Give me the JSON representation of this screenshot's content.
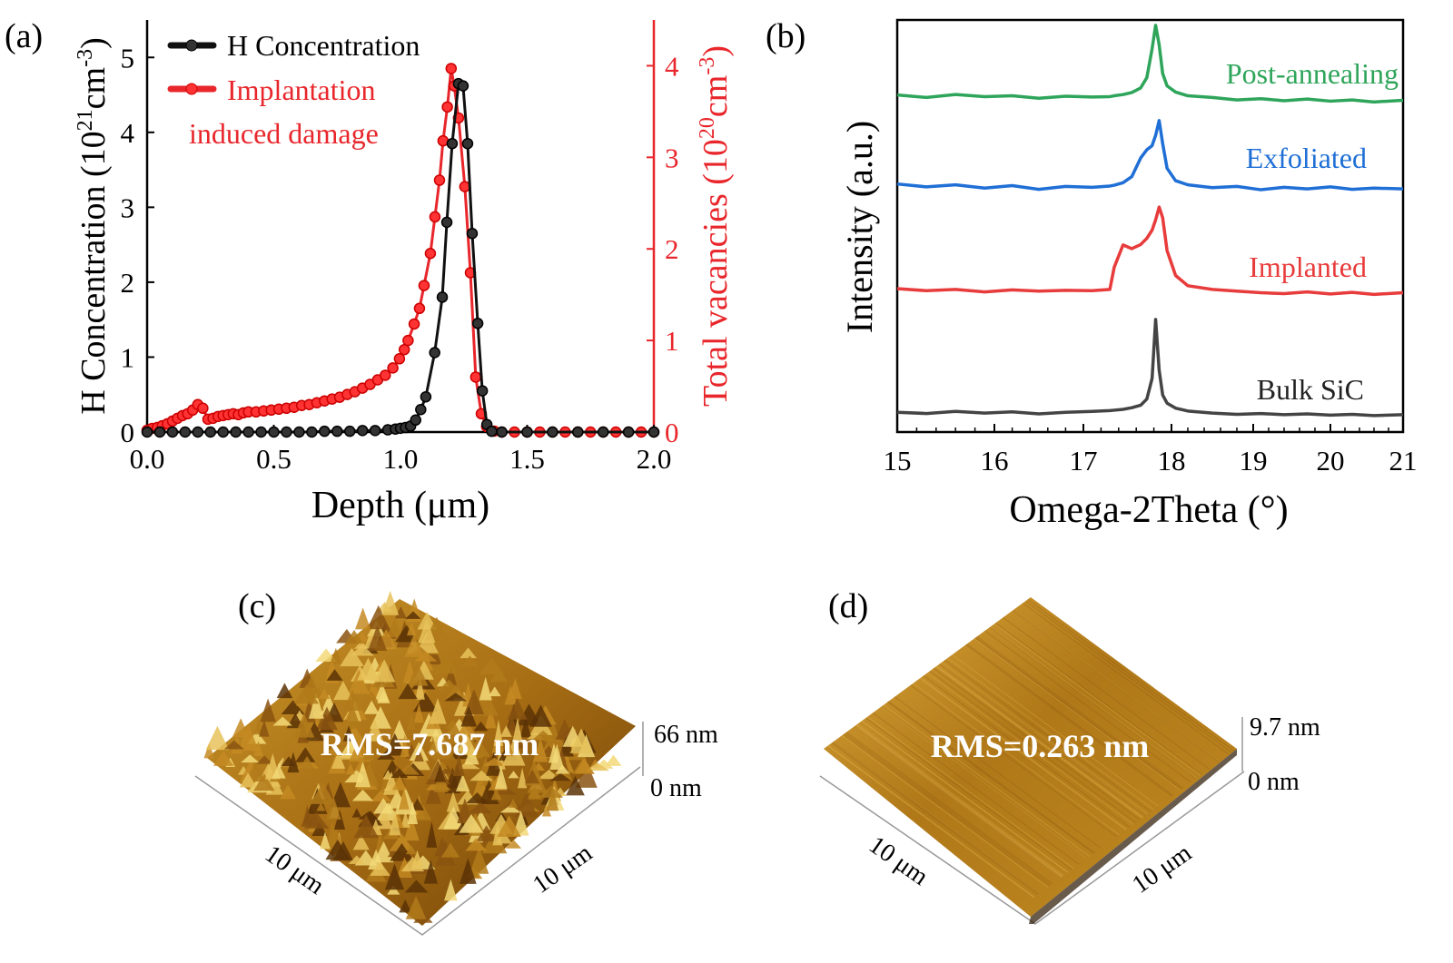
{
  "panel_labels": {
    "a": "(a)",
    "b": "(b)",
    "c": "(c)",
    "d": "(d)"
  },
  "colors": {
    "h": "#111111",
    "damage": "#e8262b",
    "post": "#2ea55a",
    "exf": "#1f6fd6",
    "imp": "#e83b3b",
    "bulk": "#444444"
  },
  "chart_data": [
    {
      "type": "line",
      "panel": "a",
      "xlabel": "Depth (μm)",
      "ylabel": {
        "main": "H Concentration (10",
        "sup1": "21",
        "mid": "cm",
        "sup2": "-3",
        "end": ")"
      },
      "y2label": {
        "main": "Total vacancies (10",
        "sup1": "20",
        "mid": "cm",
        "sup2": "-3",
        "end": ")"
      },
      "xlim": [
        0,
        2.0
      ],
      "ylim": [
        0,
        5.5
      ],
      "y2lim": [
        0,
        4.5
      ],
      "xticks": [
        "0.0",
        "0.5",
        "1.0",
        "1.5",
        "2.0"
      ],
      "yticks": [
        "0",
        "1",
        "2",
        "3",
        "4",
        "5"
      ],
      "y2ticks": [
        "0",
        "1",
        "2",
        "3",
        "4"
      ],
      "legend": {
        "position": "top-left",
        "h_label": "H Concentration",
        "damage_label_1": "Implantation",
        "damage_label_2": "induced damage"
      },
      "series": [
        {
          "name": "H Concentration",
          "axis": "left",
          "marker": "circle",
          "points": [
            [
              0,
              0
            ],
            [
              0.05,
              0
            ],
            [
              0.1,
              0
            ],
            [
              0.15,
              0
            ],
            [
              0.2,
              0
            ],
            [
              0.25,
              0
            ],
            [
              0.3,
              0
            ],
            [
              0.35,
              0
            ],
            [
              0.4,
              0
            ],
            [
              0.45,
              0
            ],
            [
              0.5,
              0
            ],
            [
              0.55,
              0
            ],
            [
              0.6,
              0
            ],
            [
              0.65,
              0
            ],
            [
              0.7,
              0.01
            ],
            [
              0.75,
              0.01
            ],
            [
              0.8,
              0.01
            ],
            [
              0.85,
              0.02
            ],
            [
              0.9,
              0.02
            ],
            [
              0.95,
              0.03
            ],
            [
              0.98,
              0.04
            ],
            [
              1.0,
              0.05
            ],
            [
              1.02,
              0.06
            ],
            [
              1.04,
              0.08
            ],
            [
              1.06,
              0.16
            ],
            [
              1.08,
              0.3
            ],
            [
              1.1,
              0.47
            ],
            [
              1.135,
              1.06
            ],
            [
              1.165,
              1.8
            ],
            [
              1.183,
              2.8
            ],
            [
              1.204,
              3.85
            ],
            [
              1.229,
              4.65
            ],
            [
              1.247,
              4.62
            ],
            [
              1.265,
              3.85
            ],
            [
              1.283,
              2.65
            ],
            [
              1.305,
              1.45
            ],
            [
              1.323,
              0.55
            ],
            [
              1.341,
              0.1
            ],
            [
              1.36,
              0.01
            ],
            [
              1.4,
              0
            ],
            [
              1.5,
              0
            ],
            [
              1.6,
              0
            ],
            [
              1.7,
              0
            ],
            [
              1.8,
              0
            ],
            [
              1.9,
              0
            ],
            [
              2.0,
              0
            ]
          ]
        },
        {
          "name": "Implantation induced damage",
          "axis": "right",
          "marker": "circle",
          "points": [
            [
              0,
              0.02
            ],
            [
              0.02,
              0.04
            ],
            [
              0.04,
              0.05
            ],
            [
              0.06,
              0.07
            ],
            [
              0.08,
              0.09
            ],
            [
              0.1,
              0.12
            ],
            [
              0.12,
              0.15
            ],
            [
              0.14,
              0.18
            ],
            [
              0.16,
              0.2
            ],
            [
              0.18,
              0.24
            ],
            [
              0.2,
              0.3
            ],
            [
              0.22,
              0.26
            ],
            [
              0.24,
              0.14
            ],
            [
              0.26,
              0.15
            ],
            [
              0.28,
              0.17
            ],
            [
              0.3,
              0.18
            ],
            [
              0.32,
              0.19
            ],
            [
              0.34,
              0.2
            ],
            [
              0.36,
              0.19
            ],
            [
              0.38,
              0.21
            ],
            [
              0.4,
              0.22
            ],
            [
              0.43,
              0.22
            ],
            [
              0.46,
              0.23
            ],
            [
              0.49,
              0.24
            ],
            [
              0.52,
              0.25
            ],
            [
              0.55,
              0.26
            ],
            [
              0.58,
              0.27
            ],
            [
              0.61,
              0.29
            ],
            [
              0.64,
              0.3
            ],
            [
              0.67,
              0.32
            ],
            [
              0.7,
              0.34
            ],
            [
              0.73,
              0.36
            ],
            [
              0.76,
              0.38
            ],
            [
              0.79,
              0.41
            ],
            [
              0.82,
              0.44
            ],
            [
              0.85,
              0.48
            ],
            [
              0.88,
              0.52
            ],
            [
              0.91,
              0.57
            ],
            [
              0.94,
              0.62
            ],
            [
              0.97,
              0.7
            ],
            [
              0.996,
              0.8
            ],
            [
              1.015,
              0.9
            ],
            [
              1.03,
              1.0
            ],
            [
              1.054,
              1.18
            ],
            [
              1.075,
              1.35
            ],
            [
              1.093,
              1.6
            ],
            [
              1.118,
              1.95
            ],
            [
              1.136,
              2.35
            ],
            [
              1.154,
              2.75
            ],
            [
              1.168,
              3.18
            ],
            [
              1.185,
              3.55
            ],
            [
              1.2,
              3.97
            ],
            [
              1.212,
              3.78
            ],
            [
              1.229,
              3.43
            ],
            [
              1.254,
              2.68
            ],
            [
              1.276,
              1.74
            ],
            [
              1.297,
              0.6
            ],
            [
              1.319,
              0.2
            ],
            [
              1.34,
              0.06
            ],
            [
              1.37,
              0.01
            ],
            [
              1.4,
              0
            ],
            [
              1.45,
              0
            ],
            [
              1.5,
              0
            ],
            [
              1.55,
              0
            ],
            [
              1.6,
              0
            ],
            [
              1.65,
              0
            ],
            [
              1.7,
              0
            ],
            [
              1.75,
              0
            ],
            [
              1.8,
              0
            ],
            [
              1.85,
              0
            ],
            [
              1.9,
              0
            ],
            [
              1.95,
              0
            ],
            [
              2.0,
              0
            ]
          ]
        }
      ]
    },
    {
      "type": "line",
      "panel": "b",
      "xlabel": "Omega-2Theta (°)",
      "ylabel": "Intensity (a.u.)",
      "xlim": [
        15,
        21
      ],
      "xticks": [
        "15",
        "16",
        "17",
        "18",
        "19",
        "20",
        "21"
      ],
      "y_units": "a.u. (stacked, no tick labels)",
      "x": [
        15,
        15.3,
        15.6,
        15.9,
        16.2,
        16.5,
        16.8,
        17.1,
        17.3,
        17.35,
        17.45,
        17.55,
        17.65,
        17.72,
        17.78,
        17.82,
        17.86,
        17.9,
        17.95,
        18.05,
        18.2,
        18.5,
        18.8,
        19.1,
        19.4,
        19.7,
        20,
        20.3,
        20.6,
        21
      ],
      "series": [
        {
          "name": "Post-annealing",
          "color_key": "post",
          "values": [
            81.8,
            81.2,
            81.9,
            81.4,
            81.6,
            81.0,
            81.5,
            81.3,
            81.4,
            81.6,
            81.9,
            82.4,
            83.5,
            86,
            93,
            98.7,
            94,
            87,
            84,
            82.5,
            81.6,
            81.2,
            80.6,
            80.9,
            80.4,
            80.8,
            80.3,
            80.6,
            80.1,
            80.5
          ]
        },
        {
          "name": "Exfoliated",
          "color_key": "exf",
          "values": [
            60.2,
            59.5,
            60.0,
            59.2,
            59.8,
            58.9,
            59.6,
            59.4,
            59.7,
            59.9,
            60.5,
            62,
            66.5,
            68.5,
            69.5,
            72,
            75.6,
            70,
            64,
            61,
            60,
            59.3,
            59.6,
            58.8,
            59.4,
            59.0,
            59.5,
            58.9,
            59.2,
            59.0
          ]
        },
        {
          "name": "Implanted",
          "color_key": "imp",
          "values": [
            34.8,
            34.3,
            34.6,
            34.0,
            34.5,
            34.2,
            34.4,
            34.3,
            34.6,
            40,
            45.4,
            44.5,
            45.5,
            47,
            49,
            51.5,
            54.6,
            52,
            44,
            38,
            35.5,
            34.6,
            34.2,
            33.8,
            33.6,
            34.0,
            33.5,
            33.9,
            33.4,
            33.8
          ]
        },
        {
          "name": "Bulk SiC",
          "color_key": "bulk",
          "values": [
            4.8,
            4.5,
            5.0,
            4.6,
            4.9,
            4.4,
            4.8,
            5.0,
            5.2,
            5.3,
            5.5,
            5.9,
            6.5,
            8,
            13,
            27.3,
            15,
            9,
            7,
            5.8,
            5.1,
            4.6,
            4.3,
            4.5,
            4.2,
            4.4,
            4.1,
            4.3,
            4.0,
            4.2
          ]
        }
      ]
    }
  ],
  "afm_c": {
    "rms": "RMS=7.687 nm",
    "z_max": "66 nm",
    "z_min": "0 nm",
    "x_len": "10 μm",
    "y_len": "10 μm"
  },
  "afm_d": {
    "rms": "RMS=0.263 nm",
    "z_max": "9.7 nm",
    "z_min": "0 nm",
    "x_len": "10 μm",
    "y_len": "10 μm"
  }
}
